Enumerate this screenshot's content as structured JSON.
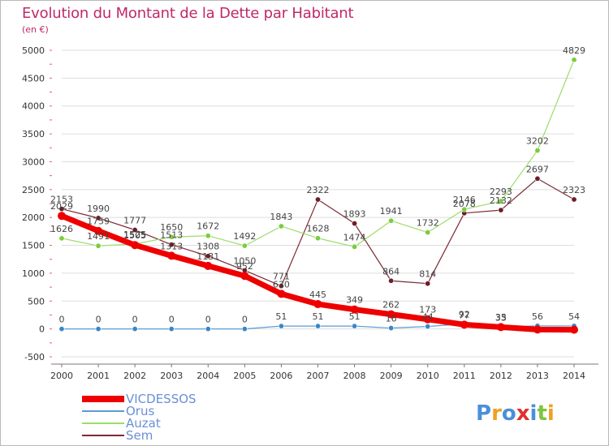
{
  "title": "Evolution du Montant de la Dette par Habitant",
  "subtitle": "(en €)",
  "logo_text": "Proxiti",
  "colors": {
    "title": "#c0286a",
    "grid": "#dddddd",
    "axis_text": "#333333",
    "label_text": "#444444",
    "legend_text": "#6a8fd6"
  },
  "chart_data": {
    "type": "line",
    "x": [
      2000,
      2001,
      2002,
      2003,
      2004,
      2005,
      2006,
      2007,
      2008,
      2009,
      2010,
      2011,
      2012,
      2013,
      2014
    ],
    "ylim": [
      -500,
      5000
    ],
    "yticks": [
      -500,
      0,
      500,
      1000,
      1500,
      2000,
      2500,
      3000,
      3500,
      4000,
      4500,
      5000
    ],
    "grid": true,
    "legend_position": "bottom-left",
    "series": [
      {
        "name": "VICDESSOS",
        "color": "#ee0000",
        "marker": "#ee0000",
        "width": 7,
        "values": [
          2029,
          1759,
          1505,
          1313,
          1131,
          952,
          630,
          445,
          349,
          262,
          173,
          77,
          33,
          -10,
          -14
        ]
      },
      {
        "name": "Orus",
        "color": "#5b9bd5",
        "marker": "#3d85c6",
        "width": 1.2,
        "values": [
          0,
          0,
          0,
          0,
          0,
          0,
          51,
          51,
          51,
          16,
          44,
          92,
          35,
          56,
          54
        ]
      },
      {
        "name": "Auzat",
        "color": "#9cdc6a",
        "marker": "#7dcc3c",
        "width": 1.2,
        "values": [
          1626,
          1491,
          1525,
          1650,
          1672,
          1492,
          1843,
          1628,
          1474,
          1941,
          1732,
          2146,
          2293,
          3202,
          4829
        ]
      },
      {
        "name": "Sem",
        "color": "#7b2a33",
        "marker": "#6b1f28",
        "width": 1.2,
        "values": [
          2153,
          1990,
          1777,
          1513,
          1308,
          1050,
          771,
          2322,
          1893,
          864,
          814,
          2078,
          2132,
          2697,
          2323
        ]
      }
    ]
  }
}
